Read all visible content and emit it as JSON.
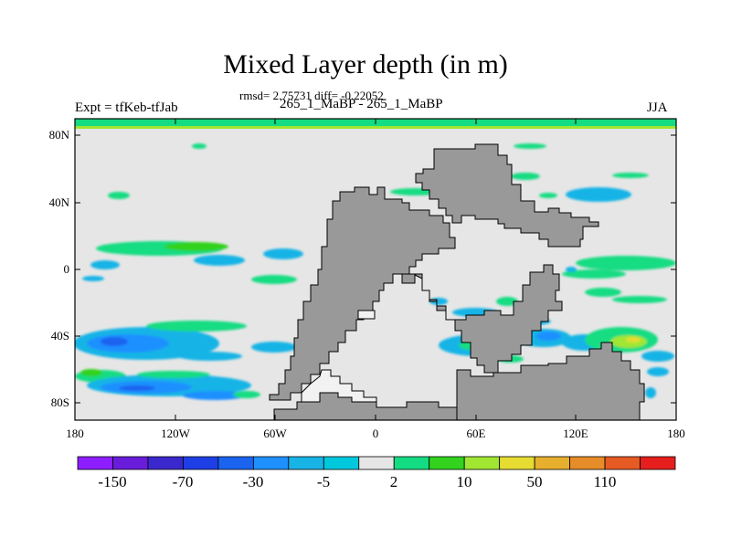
{
  "title": "Mixed Layer depth (in m)",
  "subtitle": "rmsd= 2.75731 diff= -0.22052",
  "left_label": "Expt = tfKeb-tfJab",
  "center_label": "265_1_MaBP - 265_1_MaBP",
  "right_label": "JJA",
  "colors": {
    "ocean_background": "#e6e6e6",
    "land": "#999999",
    "outline": "#000000"
  },
  "chart_data": {
    "type": "heatmap",
    "x_ticks": [
      "180",
      "120W",
      "60W",
      "0",
      "60E",
      "120E",
      "180"
    ],
    "y_ticks": [
      "80N",
      "40N",
      "0",
      "40S",
      "80S"
    ],
    "xlim": [
      -180,
      180
    ],
    "ylim": [
      -90,
      90
    ],
    "colorbar": {
      "colors": [
        "#8c1eff",
        "#6a1cdb",
        "#3b28cc",
        "#1e3ee6",
        "#1a64f0",
        "#1e90ff",
        "#19b4e6",
        "#00c8dc",
        "#e6e6e6",
        "#14dc82",
        "#32d21e",
        "#a0e632",
        "#e6dc32",
        "#e6af2d",
        "#e68c28",
        "#e65a23",
        "#e61e1e"
      ],
      "labels": [
        "-150",
        "-70",
        "-30",
        "-5",
        "2",
        "10",
        "50",
        "110"
      ]
    }
  }
}
